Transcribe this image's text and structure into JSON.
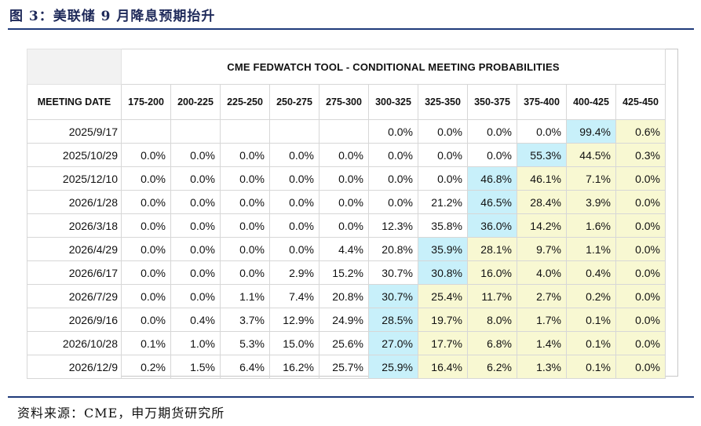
{
  "figure": {
    "title": "图 3：美联储 9 月降息预期抬升",
    "source": "资料来源：CME，申万期货研究所"
  },
  "table": {
    "tool_title": "CME FEDWATCH TOOL - CONDITIONAL MEETING PROBABILITIES",
    "date_header": "MEETING DATE",
    "rate_headers": [
      "175-200",
      "200-225",
      "225-250",
      "250-275",
      "275-300",
      "300-325",
      "325-350",
      "350-375",
      "375-400",
      "400-425",
      "425-450"
    ],
    "rows": [
      {
        "date": "2025/9/17",
        "values": [
          "",
          "",
          "",
          "",
          "",
          "0.0%",
          "0.0%",
          "0.0%",
          "0.0%",
          "99.4%",
          "0.6%"
        ]
      },
      {
        "date": "2025/10/29",
        "values": [
          "0.0%",
          "0.0%",
          "0.0%",
          "0.0%",
          "0.0%",
          "0.0%",
          "0.0%",
          "0.0%",
          "55.3%",
          "44.5%",
          "0.3%"
        ]
      },
      {
        "date": "2025/12/10",
        "values": [
          "0.0%",
          "0.0%",
          "0.0%",
          "0.0%",
          "0.0%",
          "0.0%",
          "0.0%",
          "46.8%",
          "46.1%",
          "7.1%",
          "0.0%"
        ]
      },
      {
        "date": "2026/1/28",
        "values": [
          "0.0%",
          "0.0%",
          "0.0%",
          "0.0%",
          "0.0%",
          "0.0%",
          "21.2%",
          "46.5%",
          "28.4%",
          "3.9%",
          "0.0%"
        ]
      },
      {
        "date": "2026/3/18",
        "values": [
          "0.0%",
          "0.0%",
          "0.0%",
          "0.0%",
          "0.0%",
          "12.3%",
          "35.8%",
          "36.0%",
          "14.2%",
          "1.6%",
          "0.0%"
        ]
      },
      {
        "date": "2026/4/29",
        "values": [
          "0.0%",
          "0.0%",
          "0.0%",
          "0.0%",
          "4.4%",
          "20.8%",
          "35.9%",
          "28.1%",
          "9.7%",
          "1.1%",
          "0.0%"
        ]
      },
      {
        "date": "2026/6/17",
        "values": [
          "0.0%",
          "0.0%",
          "0.0%",
          "2.9%",
          "15.2%",
          "30.7%",
          "30.8%",
          "16.0%",
          "4.0%",
          "0.4%",
          "0.0%"
        ]
      },
      {
        "date": "2026/7/29",
        "values": [
          "0.0%",
          "0.0%",
          "1.1%",
          "7.4%",
          "20.8%",
          "30.7%",
          "25.4%",
          "11.7%",
          "2.7%",
          "0.2%",
          "0.0%"
        ]
      },
      {
        "date": "2026/9/16",
        "values": [
          "0.0%",
          "0.4%",
          "3.7%",
          "12.9%",
          "24.9%",
          "28.5%",
          "19.7%",
          "8.0%",
          "1.7%",
          "0.1%",
          "0.0%"
        ]
      },
      {
        "date": "2026/10/28",
        "values": [
          "0.1%",
          "1.0%",
          "5.3%",
          "15.0%",
          "25.6%",
          "27.0%",
          "17.7%",
          "6.8%",
          "1.4%",
          "0.1%",
          "0.0%"
        ]
      },
      {
        "date": "2026/12/9",
        "values": [
          "0.2%",
          "1.5%",
          "6.4%",
          "16.2%",
          "25.7%",
          "25.9%",
          "16.4%",
          "6.2%",
          "1.3%",
          "0.1%",
          "0.0%"
        ]
      }
    ],
    "highlight_col_index_per_row": [
      9,
      8,
      7,
      7,
      7,
      6,
      6,
      5,
      5,
      5,
      5
    ],
    "colors": {
      "highlight": "#c8f0fa",
      "shaded": "#f8f8d2",
      "rule": "#1f3a7a"
    }
  }
}
